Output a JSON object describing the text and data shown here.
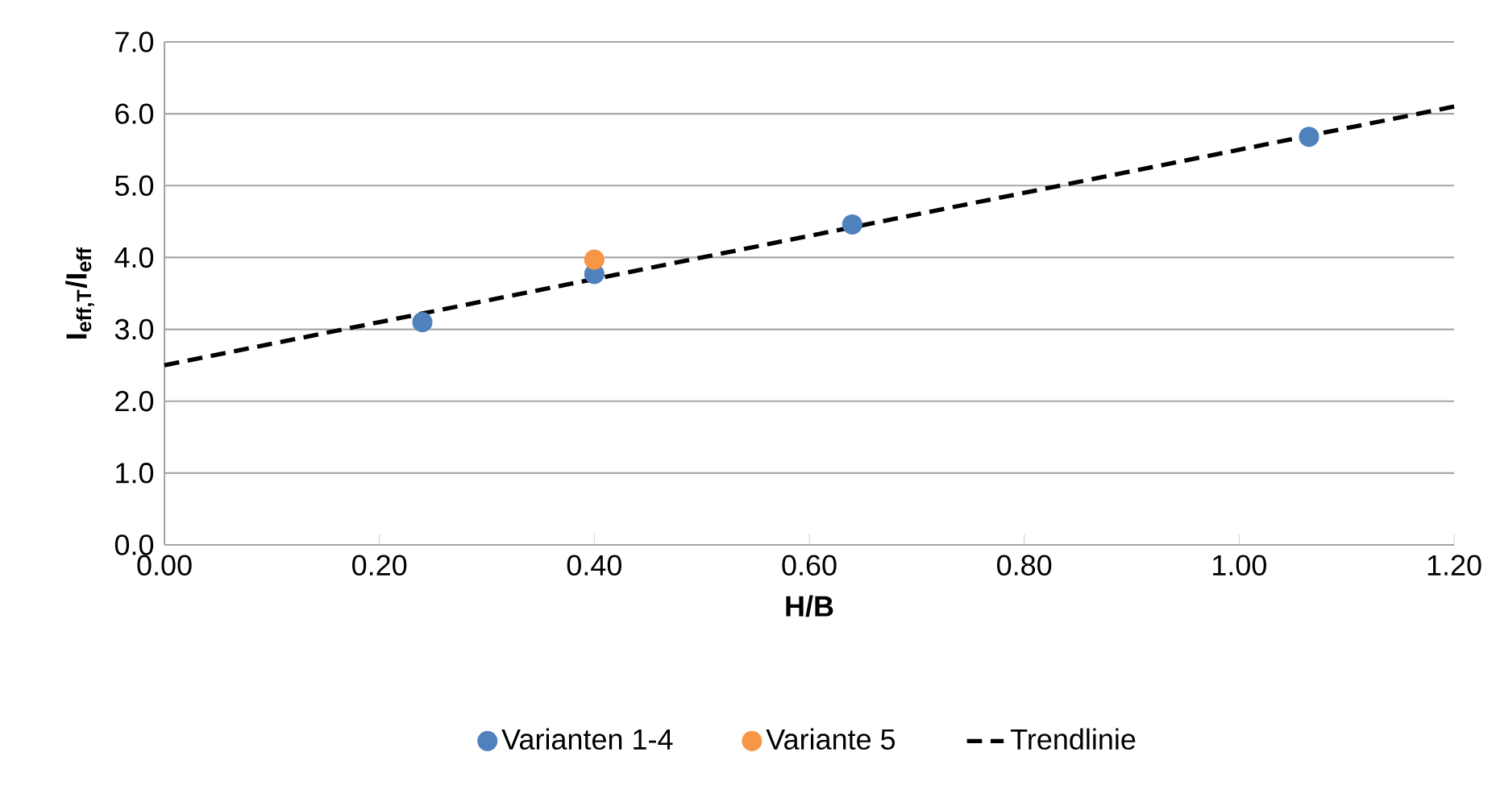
{
  "chart_data": {
    "type": "scatter",
    "xlabel": "H/B",
    "ylabel": "I$_{eff,T}$/I$_{eff}$",
    "series": [
      {
        "name": "Varianten 1-4",
        "color": "#4f81bd",
        "x": [
          0.24,
          0.4,
          0.64,
          1.065
        ],
        "values": [
          3.1,
          3.77,
          4.46,
          5.68
        ],
        "marker": "circle"
      },
      {
        "name": "Variante 5",
        "color": "#f79646",
        "x": [
          0.4
        ],
        "values": [
          3.97
        ],
        "marker": "circle"
      },
      {
        "name": "Trendlinie",
        "type": "line",
        "color": "#000000",
        "x": [
          0,
          1.2
        ],
        "values": [
          2.5,
          6.1
        ],
        "marker": "none",
        "line_style": "dashed"
      }
    ],
    "xlim": [
      0,
      1.2
    ],
    "ylim": [
      0,
      7
    ],
    "xticks": [
      {
        "value": 0,
        "label": "0.00"
      },
      {
        "value": 0.2,
        "label": "0.20"
      },
      {
        "value": 0.4,
        "label": "0.40"
      },
      {
        "value": 0.6,
        "label": "0.60"
      },
      {
        "value": 0.8,
        "label": "0.80"
      },
      {
        "value": 1.0,
        "label": "1.00"
      },
      {
        "value": 1.2,
        "label": "1.20"
      }
    ],
    "yticks": [
      {
        "value": 0,
        "label": "0.0"
      },
      {
        "value": 1,
        "label": "1.0"
      },
      {
        "value": 2,
        "label": "2.0"
      },
      {
        "value": 3,
        "label": "3.0"
      },
      {
        "value": 4,
        "label": "4.0"
      },
      {
        "value": 5,
        "label": "5.0"
      },
      {
        "value": 6,
        "label": "6.0"
      },
      {
        "value": 7,
        "label": "7.0"
      }
    ],
    "grid": "y",
    "legend": "bottom"
  }
}
